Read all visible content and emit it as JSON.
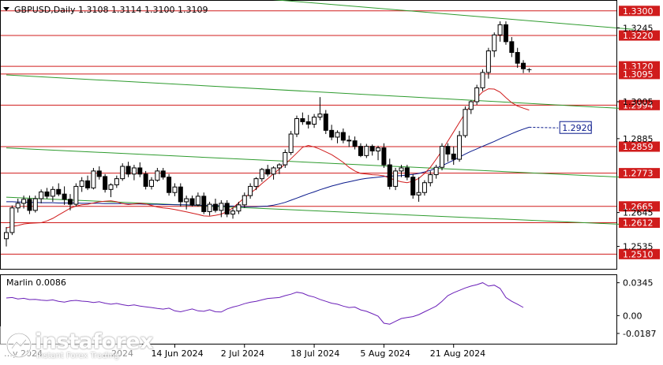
{
  "header": {
    "text": "GBPUSD,Daily  1.3108 1.3114 1.3100 1.3109"
  },
  "indicator": {
    "label": "Marlin 0.0086"
  },
  "logo": {
    "name": "instaforex",
    "tagline": "Instant Forex Trading"
  },
  "colors": {
    "candle_up": "#ffffff",
    "candle_down": "#000000",
    "level_line": "#d01c1c",
    "channel_line": "#2e9b2e",
    "ma_slow": "#0a1a8c",
    "ma_fast": "#d01c1c",
    "oscillator": "#6a1fb8",
    "level_tag_bg": "#d01c1c",
    "ma_tag_border": "#0a1a8c"
  },
  "chart_data": [
    {
      "type": "candlestick",
      "symbol": "GBPUSD",
      "timeframe": "Daily",
      "last_bar": {
        "open": 1.3108,
        "high": 1.3114,
        "low": 1.31,
        "close": 1.3109
      },
      "ylim": [
        1.2475,
        1.332
      ],
      "price_axis_ticks": [
        1.33,
        1.3245,
        1.322,
        1.312,
        1.3095,
        1.3005,
        1.2994,
        1.2885,
        1.2859,
        1.2773,
        1.2665,
        1.2645,
        1.2612,
        1.251,
        1.2535
      ],
      "x_tick_labels": [
        {
          "label": "14 Jun 2024",
          "bar": 29
        },
        {
          "label": "2 Jul 2024",
          "bar": 41
        },
        {
          "label": "18 Jul 2024",
          "bar": 53
        },
        {
          "label": "5 Aug 2024",
          "bar": 65
        },
        {
          "label": "21 Aug 2024",
          "bar": 77
        }
      ],
      "x_tick_label_partial": "…y 2024",
      "x_tick_label_partial_2": "…2024",
      "horizontal_levels": [
        {
          "price": 1.33,
          "label": "1.3300"
        },
        {
          "price": 1.322,
          "label": "1.3220"
        },
        {
          "price": 1.312,
          "label": "1.3120"
        },
        {
          "price": 1.3095,
          "label": "1.3095"
        },
        {
          "price": 1.2994,
          "label": "1.2994"
        },
        {
          "price": 1.2859,
          "label": "1.2859"
        },
        {
          "price": 1.2773,
          "label": "1.2773"
        },
        {
          "price": 1.2665,
          "label": "1.2665"
        },
        {
          "price": 1.2612,
          "label": "1.2612"
        },
        {
          "price": 1.251,
          "label": "1.2510"
        }
      ],
      "channel_lines": [
        {
          "from": {
            "bar": 18,
            "price": 1.338
          },
          "to": {
            "bar": 108,
            "price": 1.324
          }
        },
        {
          "from": {
            "bar": 0,
            "price": 1.3092
          },
          "to": {
            "bar": 108,
            "price": 1.2981
          }
        },
        {
          "from": {
            "bar": 0,
            "price": 1.2855
          },
          "to": {
            "bar": 108,
            "price": 1.2758
          }
        },
        {
          "from": {
            "bar": 0,
            "price": 1.2695
          },
          "to": {
            "bar": 108,
            "price": 1.2605
          }
        }
      ],
      "ma_slow_tag": {
        "value": 1.292,
        "label": "1.2920"
      },
      "ma_slow": [
        1.268,
        1.268,
        1.2679,
        1.2679,
        1.2678,
        1.2678,
        1.2677,
        1.2677,
        1.2677,
        1.2676,
        1.2676,
        1.2676,
        1.2676,
        1.2675,
        1.2675,
        1.2675,
        1.2675,
        1.2674,
        1.2674,
        1.2674,
        1.2674,
        1.2673,
        1.2673,
        1.2673,
        1.2672,
        1.2672,
        1.2672,
        1.2671,
        1.2671,
        1.267,
        1.267,
        1.267,
        1.2669,
        1.2669,
        1.2668,
        1.2668,
        1.2667,
        1.2667,
        1.2666,
        1.2666,
        1.2665,
        1.2664,
        1.2664,
        1.2664,
        1.2665,
        1.2666,
        1.2669,
        1.2673,
        1.2678,
        1.2685,
        1.2692,
        1.2699,
        1.2706,
        1.2712,
        1.2719,
        1.2725,
        1.2731,
        1.2736,
        1.2741,
        1.2745,
        1.2749,
        1.2753,
        1.2756,
        1.2758,
        1.276,
        1.2762,
        1.2763,
        1.2764,
        1.2765,
        1.2767,
        1.2769,
        1.2772,
        1.2777,
        1.2782,
        1.2789,
        1.2797,
        1.2806,
        1.2815,
        1.2825,
        1.2835,
        1.2844,
        1.2852,
        1.286,
        1.2868,
        1.2876,
        1.2885,
        1.2893,
        1.2901,
        1.2909,
        1.2916,
        1.2922
      ],
      "ma_slow_projection_bars": [
        90,
        95
      ],
      "ma_fast": [
        1.2595,
        1.26,
        1.2603,
        1.2608,
        1.261,
        1.2611,
        1.2612,
        1.2618,
        1.2626,
        1.2637,
        1.2648,
        1.2659,
        1.2666,
        1.267,
        1.2672,
        1.2676,
        1.268,
        1.2682,
        1.2683,
        1.268,
        1.2674,
        1.2671,
        1.2673,
        1.2675,
        1.2673,
        1.2668,
        1.2663,
        1.266,
        1.2658,
        1.2655,
        1.2651,
        1.2647,
        1.2643,
        1.2639,
        1.2634,
        1.2633,
        1.2636,
        1.264,
        1.2648,
        1.266,
        1.2677,
        1.2693,
        1.2708,
        1.2722,
        1.2739,
        1.2755,
        1.2771,
        1.2786,
        1.2802,
        1.282,
        1.2838,
        1.2857,
        1.2863,
        1.2858,
        1.2851,
        1.2842,
        1.2833,
        1.2821,
        1.2808,
        1.2792,
        1.278,
        1.2772,
        1.277,
        1.2768,
        1.2767,
        1.2764,
        1.2757,
        1.275,
        1.2745,
        1.2742,
        1.2747,
        1.2756,
        1.2772,
        1.2792,
        1.2818,
        1.2846,
        1.2877,
        1.2907,
        1.2938,
        1.2968,
        1.2995,
        1.3018,
        1.3037,
        1.3047,
        1.3046,
        1.3036,
        1.3018,
        1.3002,
        1.2991,
        1.2984,
        1.2978
      ],
      "ohlc": [
        [
          1.256,
          1.2598,
          1.2535,
          1.258
        ],
        [
          1.258,
          1.2668,
          1.2572,
          1.266
        ],
        [
          1.266,
          1.269,
          1.2645,
          1.2675
        ],
        [
          1.2675,
          1.27,
          1.2658,
          1.2688
        ],
        [
          1.2688,
          1.27,
          1.264,
          1.2652
        ],
        [
          1.2652,
          1.27,
          1.2645,
          1.269
        ],
        [
          1.269,
          1.272,
          1.2675,
          1.2712
        ],
        [
          1.2712,
          1.2725,
          1.269,
          1.2698
        ],
        [
          1.2698,
          1.273,
          1.268,
          1.272
        ],
        [
          1.272,
          1.274,
          1.2698,
          1.2705
        ],
        [
          1.2705,
          1.273,
          1.267,
          1.2688
        ],
        [
          1.2688,
          1.2705,
          1.2652,
          1.2672
        ],
        [
          1.2672,
          1.274,
          1.2665,
          1.273
        ],
        [
          1.273,
          1.276,
          1.2712,
          1.2748
        ],
        [
          1.2748,
          1.2765,
          1.2718,
          1.2725
        ],
        [
          1.2725,
          1.279,
          1.272,
          1.278
        ],
        [
          1.278,
          1.2795,
          1.2752,
          1.2762
        ],
        [
          1.2762,
          1.277,
          1.271,
          1.272
        ],
        [
          1.272,
          1.274,
          1.2695,
          1.2735
        ],
        [
          1.2735,
          1.2765,
          1.2725,
          1.2755
        ],
        [
          1.2755,
          1.2805,
          1.2748,
          1.2795
        ],
        [
          1.2795,
          1.281,
          1.276,
          1.277
        ],
        [
          1.277,
          1.28,
          1.275,
          1.279
        ],
        [
          1.279,
          1.2808,
          1.276,
          1.277
        ],
        [
          1.277,
          1.278,
          1.272,
          1.273
        ],
        [
          1.273,
          1.276,
          1.272,
          1.275
        ],
        [
          1.275,
          1.279,
          1.2745,
          1.278
        ],
        [
          1.278,
          1.279,
          1.2752,
          1.276
        ],
        [
          1.276,
          1.277,
          1.27,
          1.271
        ],
        [
          1.271,
          1.274,
          1.2698,
          1.2728
        ],
        [
          1.2728,
          1.274,
          1.2665,
          1.268
        ],
        [
          1.268,
          1.27,
          1.2655,
          1.269
        ],
        [
          1.269,
          1.27,
          1.2665,
          1.267
        ],
        [
          1.267,
          1.271,
          1.2665,
          1.2698
        ],
        [
          1.2698,
          1.271,
          1.264,
          1.2648
        ],
        [
          1.2648,
          1.268,
          1.2635,
          1.2672
        ],
        [
          1.2672,
          1.269,
          1.2645,
          1.2652
        ],
        [
          1.2652,
          1.2685,
          1.263,
          1.2675
        ],
        [
          1.2675,
          1.2685,
          1.263,
          1.264
        ],
        [
          1.264,
          1.266,
          1.2625,
          1.265
        ],
        [
          1.265,
          1.268,
          1.264,
          1.267
        ],
        [
          1.267,
          1.271,
          1.266,
          1.27
        ],
        [
          1.27,
          1.274,
          1.269,
          1.273
        ],
        [
          1.273,
          1.276,
          1.2718,
          1.2755
        ],
        [
          1.2755,
          1.279,
          1.2745,
          1.2785
        ],
        [
          1.2785,
          1.28,
          1.2762,
          1.277
        ],
        [
          1.277,
          1.2795,
          1.2752,
          1.279
        ],
        [
          1.279,
          1.2805,
          1.277,
          1.28
        ],
        [
          1.28,
          1.285,
          1.279,
          1.284
        ],
        [
          1.284,
          1.291,
          1.2832,
          1.29
        ],
        [
          1.29,
          1.296,
          1.289,
          1.295
        ],
        [
          1.295,
          1.297,
          1.293,
          1.294
        ],
        [
          1.294,
          1.2962,
          1.2918,
          1.2932
        ],
        [
          1.2932,
          1.2965,
          1.292,
          1.2955
        ],
        [
          1.2955,
          1.302,
          1.2945,
          1.2965
        ],
        [
          1.2965,
          1.2978,
          1.29,
          1.2912
        ],
        [
          1.2912,
          1.293,
          1.288,
          1.289
        ],
        [
          1.289,
          1.2912,
          1.287,
          1.2905
        ],
        [
          1.2905,
          1.2918,
          1.287,
          1.288
        ],
        [
          1.288,
          1.2895,
          1.2858,
          1.2878
        ],
        [
          1.2878,
          1.2892,
          1.285,
          1.286
        ],
        [
          1.286,
          1.287,
          1.2825,
          1.283
        ],
        [
          1.283,
          1.2868,
          1.2822,
          1.286
        ],
        [
          1.286,
          1.2866,
          1.283,
          1.2845
        ],
        [
          1.2845,
          1.2862,
          1.2815,
          1.2855
        ],
        [
          1.2855,
          1.287,
          1.279,
          1.28
        ],
        [
          1.28,
          1.282,
          1.272,
          1.273
        ],
        [
          1.273,
          1.279,
          1.2718,
          1.278
        ],
        [
          1.278,
          1.28,
          1.276,
          1.279
        ],
        [
          1.279,
          1.28,
          1.275,
          1.276
        ],
        [
          1.276,
          1.277,
          1.269,
          1.2702
        ],
        [
          1.2702,
          1.276,
          1.268,
          1.271
        ],
        [
          1.271,
          1.275,
          1.27,
          1.2742
        ],
        [
          1.2742,
          1.278,
          1.273,
          1.2768
        ],
        [
          1.2768,
          1.28,
          1.2755,
          1.2792
        ],
        [
          1.2792,
          1.287,
          1.2782,
          1.286
        ],
        [
          1.286,
          1.287,
          1.281,
          1.2835
        ],
        [
          1.2835,
          1.286,
          1.28,
          1.2818
        ],
        [
          1.2818,
          1.291,
          1.281,
          1.2895
        ],
        [
          1.2895,
          1.299,
          1.2888,
          1.298
        ],
        [
          1.298,
          1.301,
          1.2965,
          1.3005
        ],
        [
          1.3005,
          1.306,
          1.2995,
          1.305
        ],
        [
          1.305,
          1.311,
          1.304,
          1.31
        ],
        [
          1.31,
          1.318,
          1.308,
          1.317
        ],
        [
          1.317,
          1.323,
          1.315,
          1.3222
        ],
        [
          1.3222,
          1.3266,
          1.32,
          1.3255
        ],
        [
          1.3255,
          1.3266,
          1.319,
          1.32
        ],
        [
          1.32,
          1.3215,
          1.315,
          1.3165
        ],
        [
          1.3165,
          1.318,
          1.3115,
          1.313
        ],
        [
          1.313,
          1.314,
          1.3098,
          1.3112
        ],
        [
          1.3108,
          1.3114,
          1.31,
          1.3109
        ]
      ]
    },
    {
      "type": "line",
      "name": "Marlin",
      "current_value": 0.0086,
      "ylim": [
        -0.027,
        0.04
      ],
      "y_ticks": [
        0.0345,
        0.0,
        -0.0187
      ],
      "values": [
        0.0185,
        0.019,
        0.0175,
        0.0182,
        0.0168,
        0.017,
        0.0162,
        0.0158,
        0.0165,
        0.015,
        0.0142,
        0.0155,
        0.016,
        0.0152,
        0.0148,
        0.0138,
        0.0145,
        0.013,
        0.012,
        0.0128,
        0.0115,
        0.0105,
        0.0112,
        0.01,
        0.0092,
        0.0085,
        0.0075,
        0.0068,
        0.0078,
        0.005,
        0.004,
        0.0055,
        0.007,
        0.005,
        0.0045,
        0.0062,
        0.004,
        0.0038,
        0.007,
        0.009,
        0.0105,
        0.0125,
        0.014,
        0.015,
        0.0165,
        0.018,
        0.0185,
        0.019,
        0.021,
        0.0225,
        0.0245,
        0.0235,
        0.021,
        0.0195,
        0.017,
        0.015,
        0.013,
        0.012,
        0.01,
        0.0085,
        0.009,
        0.006,
        0.0045,
        0.002,
        -0.0005,
        -0.008,
        -0.009,
        -0.006,
        -0.003,
        -0.002,
        -0.001,
        0.001,
        0.004,
        0.007,
        0.01,
        0.015,
        0.021,
        0.024,
        0.0265,
        0.029,
        0.031,
        0.0325,
        0.0345,
        0.031,
        0.032,
        0.0285,
        0.019,
        0.015,
        0.012,
        0.0086
      ]
    }
  ]
}
